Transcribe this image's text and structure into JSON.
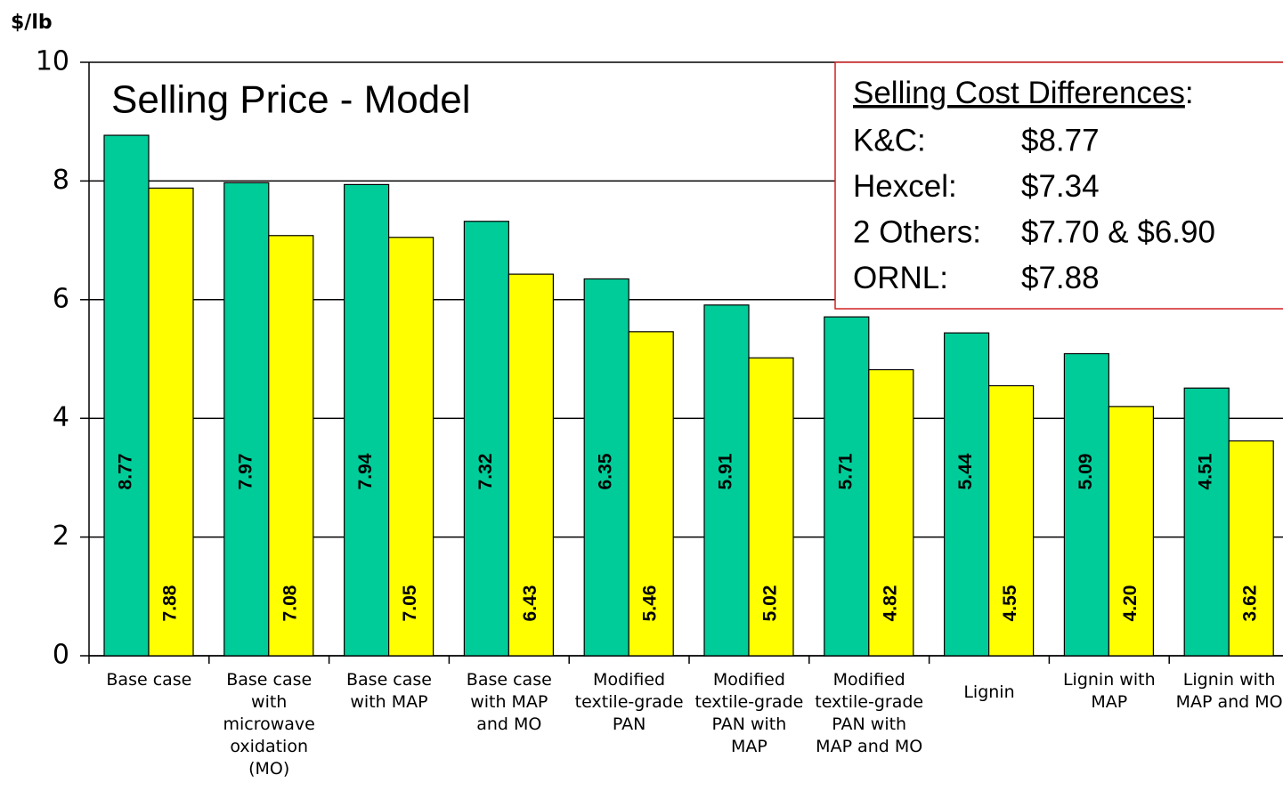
{
  "chart_data": {
    "type": "bar",
    "title": "Selling Price - Model",
    "y_label": "$/lb",
    "categories": [
      "Base case",
      "Base case with microwave oxidation (MO)",
      "Base case with MAP",
      "Base case with MAP and MO",
      "Modified textile-grade PAN",
      "Modified textile-grade PAN with MAP",
      "Modified textile-grade PAN with MAP and MO",
      "Lignin",
      "Lignin with MAP",
      "Lignin with MAP and MO"
    ],
    "series": [
      {
        "color": "#00cc99",
        "values": [
          8.77,
          7.97,
          7.94,
          7.32,
          6.35,
          5.91,
          5.71,
          5.44,
          5.09,
          4.51
        ],
        "value_labels": [
          "8.77",
          "7.97",
          "7.94",
          "7.32",
          "6.35",
          "5.91",
          "5.71",
          "5.44",
          "5.09",
          "4.51"
        ]
      },
      {
        "color": "#ffff00",
        "values": [
          7.88,
          7.08,
          7.05,
          6.43,
          5.46,
          5.02,
          4.82,
          4.55,
          4.2,
          3.62
        ],
        "value_labels": [
          "7.88",
          "7.08",
          "7.05",
          "6.43",
          "5.46",
          "5.02",
          "4.82",
          "4.55",
          "4.20",
          "3.62"
        ]
      }
    ],
    "ylim": [
      0,
      10
    ],
    "yticks": [
      0,
      2,
      4,
      6,
      8,
      10
    ],
    "grid": true,
    "annotation": {
      "heading": "Selling Cost Differences",
      "heading_suffix": ":",
      "rows": [
        {
          "label": "K&C:",
          "value": "$8.77"
        },
        {
          "label": "Hexcel:",
          "value": "$7.34"
        },
        {
          "label": "2 Others:",
          "value": "$7.70 & $6.90"
        },
        {
          "label": "ORNL:",
          "value": "$7.88"
        }
      ]
    }
  }
}
